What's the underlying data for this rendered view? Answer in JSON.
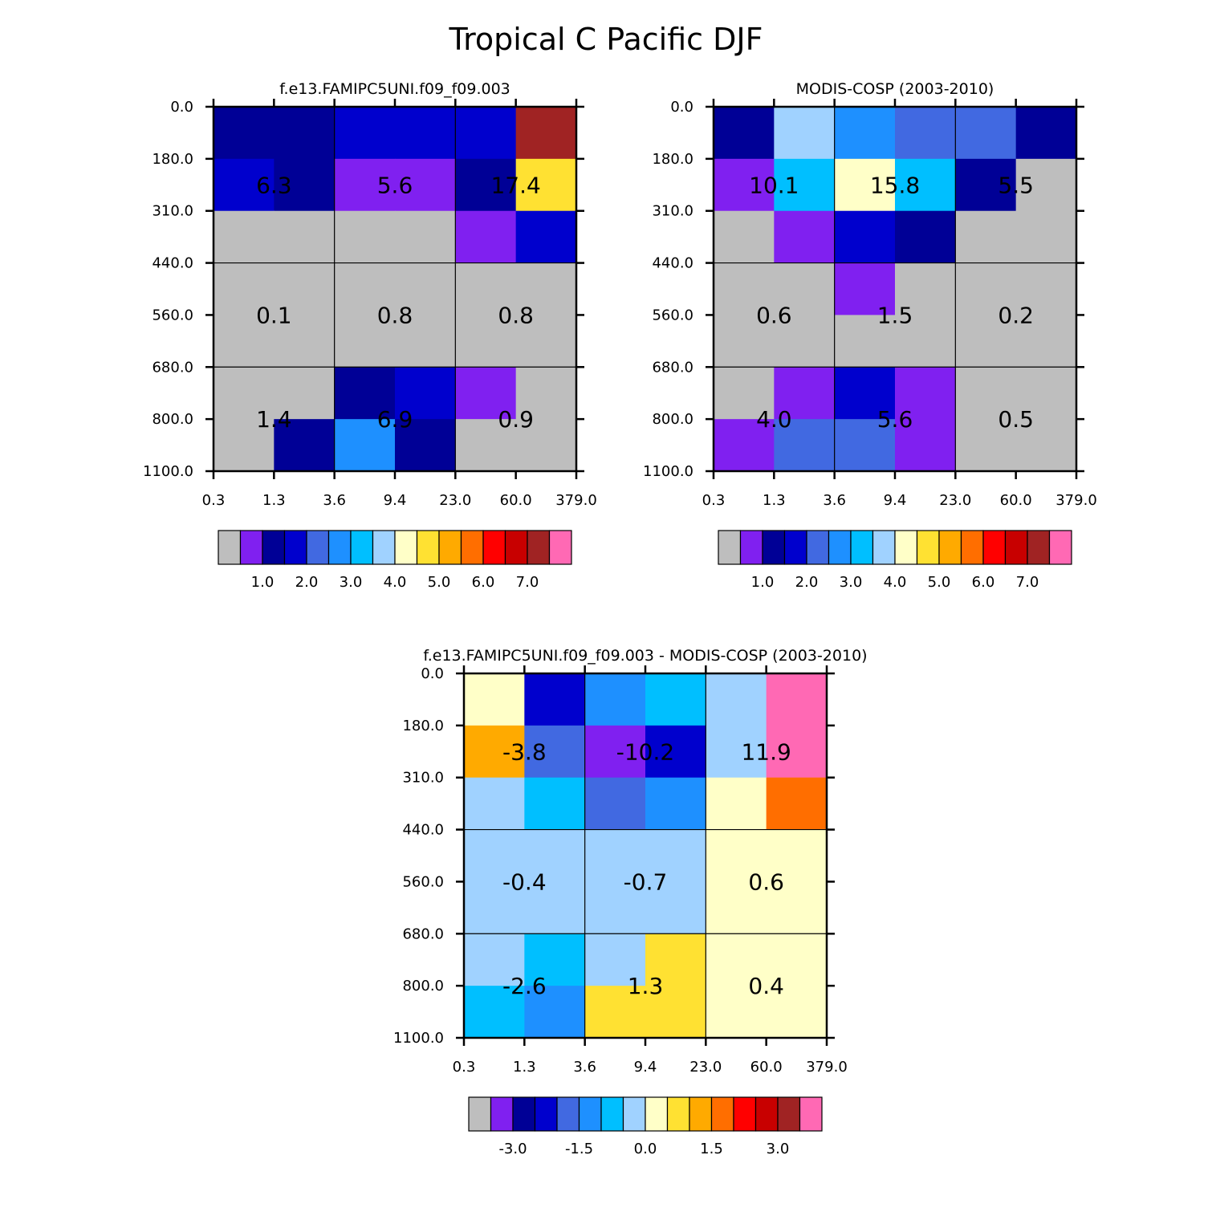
{
  "figure": {
    "title": "Tropical C Pacific DJF"
  },
  "palette": [
    "#BEBEBE",
    "#8020F0",
    "#000096",
    "#0000CD",
    "#4169E1",
    "#1E90FF",
    "#00BFFF",
    "#A0D2FF",
    "#FFFFC8",
    "#FFE132",
    "#FFAA00",
    "#FF6E00",
    "#FF0000",
    "#C80000",
    "#A02323",
    "#FF69B4"
  ],
  "chart_data": [
    {
      "type": "heatmap",
      "title": "f.e13.FAMIPC5UNI.f09_f09.003",
      "x_tick_labels": [
        "0.3",
        "1.3",
        "3.6",
        "9.4",
        "23.0",
        "60.0",
        "379.0"
      ],
      "y_tick_labels": [
        "0.0",
        "180.0",
        "310.0",
        "440.0",
        "560.0",
        "680.0",
        "800.0",
        "1100.0"
      ],
      "cell_color_index": [
        [
          2,
          2,
          3,
          3,
          3,
          14
        ],
        [
          3,
          2,
          1,
          1,
          2,
          9
        ],
        [
          0,
          0,
          0,
          0,
          1,
          3
        ],
        [
          0,
          0,
          0,
          0,
          0,
          0
        ],
        [
          0,
          0,
          0,
          0,
          0,
          0
        ],
        [
          0,
          0,
          2,
          3,
          1,
          0
        ],
        [
          0,
          2,
          5,
          2,
          0,
          0
        ]
      ],
      "box_values": [
        [
          "6.3",
          "5.6",
          "17.4"
        ],
        [
          "0.1",
          "0.8",
          "0.8"
        ],
        [
          "1.4",
          "6.9",
          "0.9"
        ]
      ],
      "colorbar_labels": [
        "1.0",
        "2.0",
        "3.0",
        "4.0",
        "5.0",
        "6.0",
        "7.0"
      ]
    },
    {
      "type": "heatmap",
      "title": "MODIS-COSP (2003-2010)",
      "x_tick_labels": [
        "0.3",
        "1.3",
        "3.6",
        "9.4",
        "23.0",
        "60.0",
        "379.0"
      ],
      "y_tick_labels": [
        "0.0",
        "180.0",
        "310.0",
        "440.0",
        "560.0",
        "680.0",
        "800.0",
        "1100.0"
      ],
      "cell_color_index": [
        [
          2,
          7,
          5,
          4,
          4,
          2
        ],
        [
          1,
          6,
          8,
          6,
          2,
          0
        ],
        [
          0,
          1,
          3,
          2,
          0,
          0
        ],
        [
          0,
          0,
          1,
          0,
          0,
          0
        ],
        [
          0,
          0,
          0,
          0,
          0,
          0
        ],
        [
          0,
          1,
          3,
          1,
          0,
          0
        ],
        [
          1,
          4,
          4,
          1,
          0,
          0
        ]
      ],
      "box_values": [
        [
          "10.1",
          "15.8",
          "5.5"
        ],
        [
          "0.6",
          "1.5",
          "0.2"
        ],
        [
          "4.0",
          "5.6",
          "0.5"
        ]
      ],
      "colorbar_labels": [
        "1.0",
        "2.0",
        "3.0",
        "4.0",
        "5.0",
        "6.0",
        "7.0"
      ]
    },
    {
      "type": "heatmap",
      "title": "f.e13.FAMIPC5UNI.f09_f09.003 - MODIS-COSP (2003-2010)",
      "x_tick_labels": [
        "0.3",
        "1.3",
        "3.6",
        "9.4",
        "23.0",
        "60.0",
        "379.0"
      ],
      "y_tick_labels": [
        "0.0",
        "180.0",
        "310.0",
        "440.0",
        "560.0",
        "680.0",
        "800.0",
        "1100.0"
      ],
      "cell_color_index": [
        [
          8,
          3,
          5,
          6,
          7,
          15
        ],
        [
          10,
          4,
          1,
          3,
          7,
          15
        ],
        [
          7,
          6,
          4,
          5,
          8,
          11
        ],
        [
          7,
          7,
          7,
          7,
          8,
          8
        ],
        [
          7,
          7,
          7,
          7,
          8,
          8
        ],
        [
          7,
          6,
          7,
          9,
          8,
          8
        ],
        [
          6,
          5,
          9,
          9,
          8,
          8
        ]
      ],
      "box_values": [
        [
          "-3.8",
          "-10.2",
          "11.9"
        ],
        [
          "-0.4",
          "-0.7",
          "0.6"
        ],
        [
          "-2.6",
          "1.3",
          "0.4"
        ]
      ],
      "colorbar_labels": [
        "-3.0",
        "-1.5",
        "0.0",
        "1.5",
        "3.0"
      ]
    }
  ]
}
